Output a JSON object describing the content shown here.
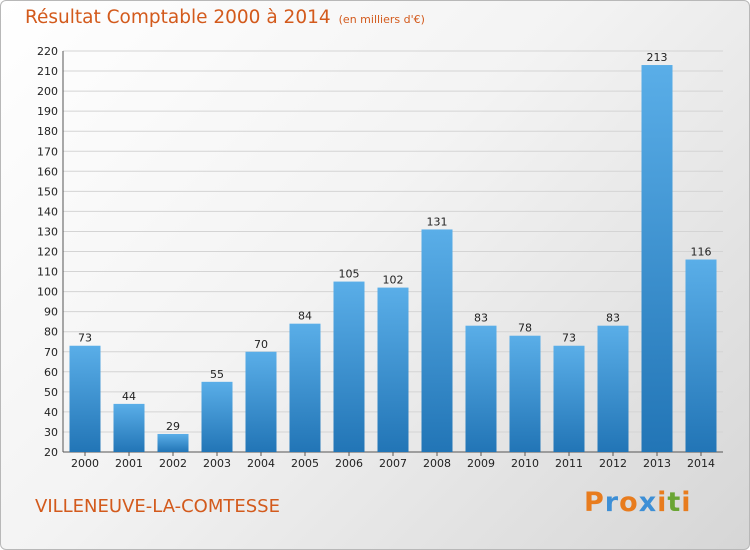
{
  "title": "Résultat Comptable 2000 à 2014",
  "subtitle": "(en milliers d'€)",
  "commune": "VILLENEUVE-LA-COMTESSE",
  "brand": {
    "letters": [
      "P",
      "r",
      "o",
      "x",
      "i",
      "t",
      "i"
    ],
    "colors": [
      "#e87c1e",
      "#3d8fd6",
      "#e87c1e",
      "#3d8fd6",
      "#e87c1e",
      "#6aa534",
      "#e87c1e"
    ]
  },
  "colors": {
    "bar_top": "#5aaee8",
    "bar_bottom": "#2275b6",
    "title": "#d35a1c"
  },
  "chart_data": {
    "type": "bar",
    "title": "Résultat Comptable 2000 à 2014",
    "subtitle": "(en milliers d'€)",
    "categories": [
      "2000",
      "2001",
      "2002",
      "2003",
      "2004",
      "2005",
      "2006",
      "2007",
      "2008",
      "2009",
      "2010",
      "2011",
      "2012",
      "2013",
      "2014"
    ],
    "values": [
      73,
      44,
      29,
      55,
      70,
      84,
      105,
      102,
      131,
      83,
      78,
      73,
      83,
      213,
      116
    ],
    "ylim": [
      20,
      220
    ],
    "yticks": [
      20,
      30,
      40,
      50,
      60,
      70,
      80,
      90,
      100,
      110,
      120,
      130,
      140,
      150,
      160,
      170,
      180,
      190,
      200,
      210,
      220
    ],
    "grid": true,
    "xlabel": "",
    "ylabel": ""
  }
}
